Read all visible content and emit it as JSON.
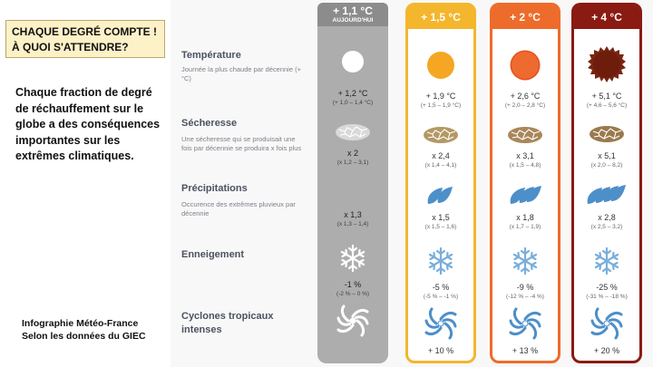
{
  "left": {
    "title_line1": "CHAQUE DEGRÉ COMPTE !",
    "title_line2": "À QUOI S'ATTENDRE?",
    "description": "Chaque fraction de degré de réchauffement sur le globe a des conséquences importantes sur les extrêmes climatiques.",
    "credit_line1": "Infographie Météo-France",
    "credit_line2": "Selon les données du GIEC"
  },
  "categories": [
    {
      "title": "Température",
      "desc": "Journée la plus chaude par décennie (+°C)"
    },
    {
      "title": "Sécheresse",
      "desc": "Une sécheresse qui se produisait une fois par décennie se produira x fois plus"
    },
    {
      "title": "Précipitations",
      "desc": "Occurence des extrêmes pluvieux par décennie"
    },
    {
      "title": "Enneigement",
      "desc": ""
    },
    {
      "title": "Cyclones tropicaux intenses",
      "desc": ""
    }
  ],
  "columns": [
    {
      "header": "+ 1,1 °C",
      "subheader": "AUJOURD'HUI",
      "color": "#8c8c8c",
      "temp": "+ 1,2 °C",
      "temp_range": "(+ 1,0 – 1,4 °C)",
      "drought": "x 2",
      "drought_range": "(x 1,2 – 3,1)",
      "precip": "x 1,3",
      "precip_range": "(x 1,3 – 1,4)",
      "snow": "-1 %",
      "snow_range": "(-2 % – 0 %)",
      "cyclone": ""
    },
    {
      "header": "+ 1,5 °C",
      "subheader": "",
      "color": "#f4b62c",
      "temp": "+ 1,9 °C",
      "temp_range": "(+ 1,5 – 1,9 °C)",
      "drought": "x 2,4",
      "drought_range": "(x 1,4 – 4,1)",
      "precip": "x 1,5",
      "precip_range": "(x 1,5 – 1,6)",
      "snow": "-5 %",
      "snow_range": "(-5 % – -1 %)",
      "cyclone": "+ 10 %"
    },
    {
      "header": "+ 2 °C",
      "subheader": "",
      "color": "#ee6c2b",
      "temp": "+ 2,6 °C",
      "temp_range": "(+ 2,0 – 2,8 °C)",
      "drought": "x 3,1",
      "drought_range": "(x 1,5 – 4,8)",
      "precip": "x 1,8",
      "precip_range": "(x 1,7 – 1,9)",
      "snow": "-9 %",
      "snow_range": "(-12 % – -4 %)",
      "cyclone": "+ 13 %"
    },
    {
      "header": "+ 4 °C",
      "subheader": "",
      "color": "#8a1b12",
      "temp": "+ 5,1 °C",
      "temp_range": "(+ 4,6 – 5,6 °C)",
      "drought": "x 5,1",
      "drought_range": "(x 2,0 – 8,2)",
      "precip": "x 2,8",
      "precip_range": "(x 2,5 – 3,2)",
      "snow": "-25 %",
      "snow_range": "(-31 % – -18 %)",
      "cyclone": "+ 20 %"
    }
  ],
  "icons": {
    "temperature": "sun-icon",
    "drought": "cracked-ground-icon",
    "precipitation": "raindrop-icon",
    "snow": "snowflake-icon",
    "cyclone": "cyclone-icon"
  }
}
